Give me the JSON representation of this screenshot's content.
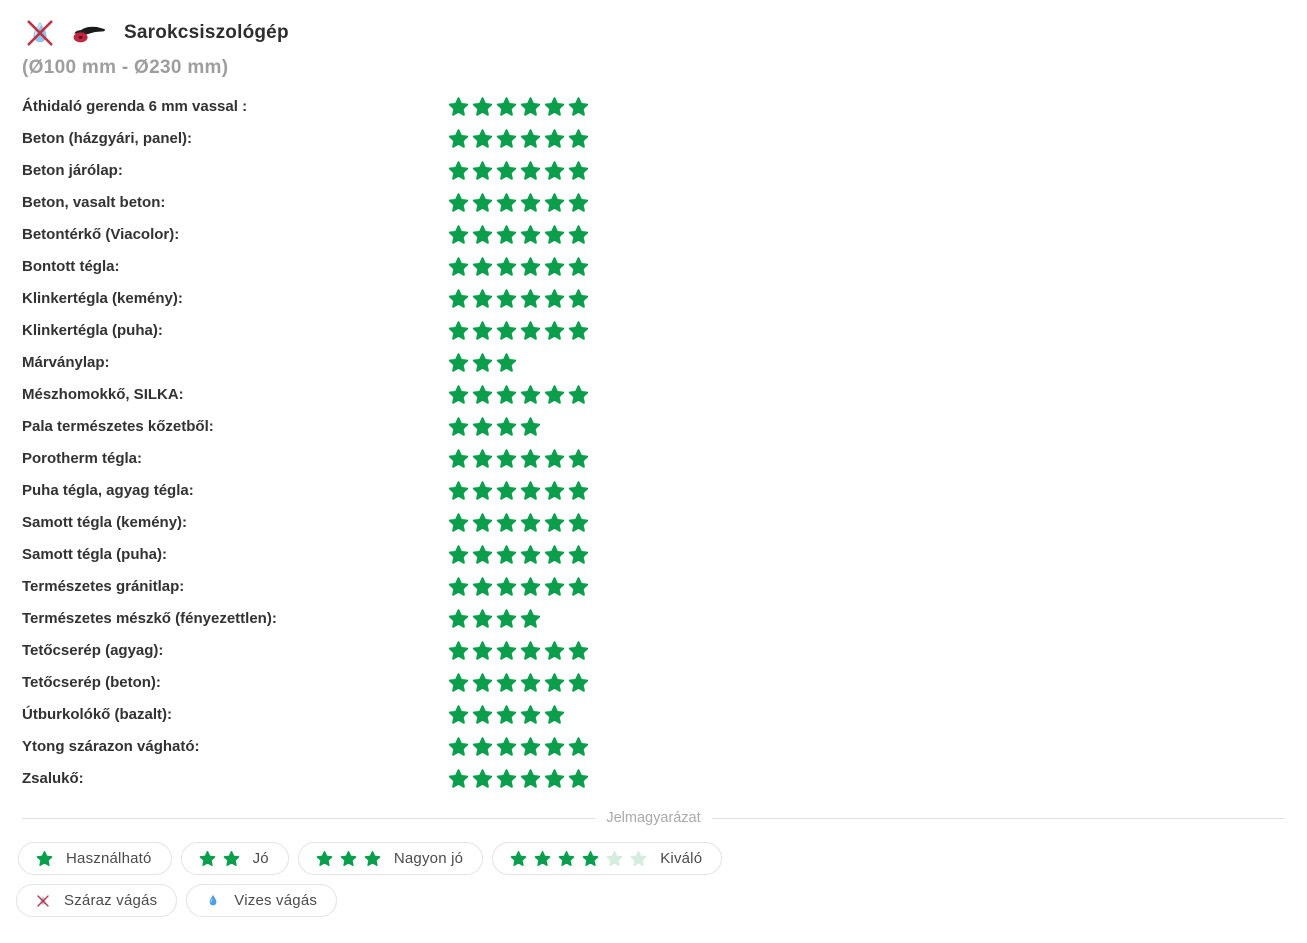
{
  "header": {
    "title": "Sarokcsiszológép",
    "subtitle": "(Ø100 mm - Ø230 mm)",
    "icons": [
      "no-wet-cutting-icon",
      "angle-grinder-icon"
    ]
  },
  "colors": {
    "star_green": "#0a9f4d",
    "star_pale": "#d5eddf",
    "drop_blue": "#4f9fe3",
    "drop_light": "#a9cdec",
    "cross_red": "#c03040",
    "disc_red": "#c22940",
    "body_black": "#1b1b1b"
  },
  "ratings": {
    "max_stars": 6
  },
  "materials": [
    {
      "label": "Áthidaló gerenda 6 mm vassal :",
      "stars": 6
    },
    {
      "label": "Beton (házgyári, panel):",
      "stars": 6
    },
    {
      "label": "Beton járólap:",
      "stars": 6
    },
    {
      "label": "Beton, vasalt beton:",
      "stars": 6
    },
    {
      "label": "Betontérkő (Viacolor):",
      "stars": 6
    },
    {
      "label": "Bontott tégla:",
      "stars": 6
    },
    {
      "label": "Klinkertégla (kemény):",
      "stars": 6
    },
    {
      "label": "Klinkertégla (puha):",
      "stars": 6
    },
    {
      "label": "Márványlap:",
      "stars": 3
    },
    {
      "label": "Mészhomokkő, SILKA:",
      "stars": 6
    },
    {
      "label": "Pala természetes kőzetből:",
      "stars": 4
    },
    {
      "label": "Porotherm tégla:",
      "stars": 6
    },
    {
      "label": "Puha tégla, agyag tégla:",
      "stars": 6
    },
    {
      "label": "Samott tégla (kemény):",
      "stars": 6
    },
    {
      "label": "Samott tégla (puha):",
      "stars": 6
    },
    {
      "label": "Természetes gránitlap:",
      "stars": 6
    },
    {
      "label": "Természetes mészkő (fényezettlen):",
      "stars": 4
    },
    {
      "label": "Tetőcserép (agyag):",
      "stars": 6
    },
    {
      "label": "Tetőcserép (beton):",
      "stars": 6
    },
    {
      "label": "Útburkolókő (bazalt):",
      "stars": 5
    },
    {
      "label": "Ytong szárazon vágható:",
      "stars": 6
    },
    {
      "label": "Zsalukő:",
      "stars": 6
    }
  ],
  "legend": {
    "divider_label": "Jelmagyarázat",
    "ratings": [
      {
        "stars": 1,
        "pale": 0,
        "label": "Használható"
      },
      {
        "stars": 2,
        "pale": 0,
        "label": "Jó"
      },
      {
        "stars": 3,
        "pale": 0,
        "label": "Nagyon jó"
      },
      {
        "stars": 4,
        "pale": 2,
        "label": "Kiváló"
      }
    ],
    "cutting": [
      {
        "icon": "dry-cutting-icon",
        "label": "Száraz vágás"
      },
      {
        "icon": "wet-cutting-icon",
        "label": "Vizes vágás"
      }
    ]
  }
}
